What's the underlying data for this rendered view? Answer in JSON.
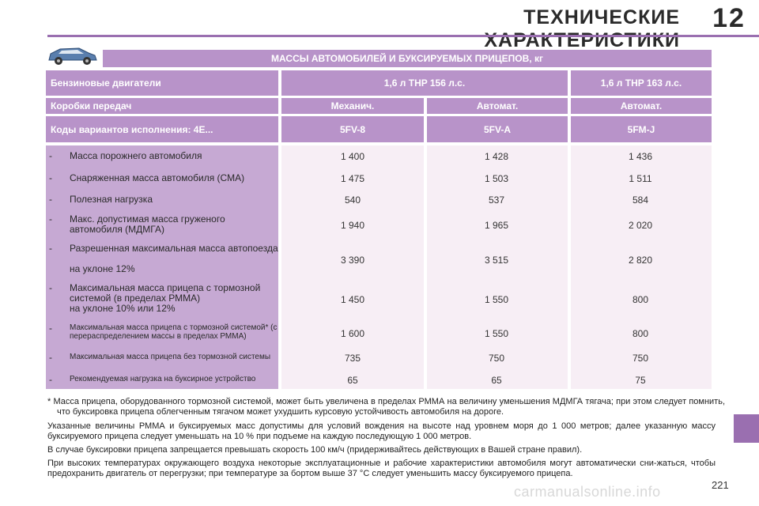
{
  "header": {
    "title": "ТЕХНИЧЕСКИЕ ХАРАКТЕРИСТИКИ",
    "chapter": "12"
  },
  "table": {
    "title": "МАССЫ АВТОМОБИЛЕЙ И БУКСИРУЕМЫХ ПРИЦЕПОВ, кг",
    "engines": {
      "label": "Бензиновые двигатели",
      "e1": "1,6 л THP 156 л.с.",
      "e2": "1,6 л THP 163 л.с."
    },
    "gearbox": {
      "label": "Коробки передач",
      "g1": "Механич.",
      "g2": "Автомат.",
      "g3": "Автомат."
    },
    "codes": {
      "label": "Коды вариантов исполнения: 4E...",
      "c1": "5FV-8",
      "c2": "5FV-A",
      "c3": "5FM-J"
    },
    "rows": [
      {
        "label": "Масса порожнего автомобиля",
        "v1": "1 400",
        "v2": "1 428",
        "v3": "1 436"
      },
      {
        "label": "Снаряженная масса автомобиля (СМА)",
        "v1": "1 475",
        "v2": "1 503",
        "v3": "1 511"
      },
      {
        "label": "Полезная нагрузка",
        "v1": "540",
        "v2": "537",
        "v3": "584"
      },
      {
        "label": "Макс. допустимая масса груженого автомобиля (МДМГА)",
        "v1": "1 940",
        "v2": "1 965",
        "v3": "2 020"
      },
      {
        "label": "Разрешенная максимальная масса автопоезда",
        "sub": "на уклоне 12%",
        "v1": "3 390",
        "v2": "3 515",
        "v3": "2 820"
      },
      {
        "label": "Максимальная масса прицепа с тормозной системой (в пределах РММА)",
        "sub": "на уклоне 10% или 12%",
        "v1": "1 450",
        "v2": "1 550",
        "v3": "800"
      },
      {
        "label": "Максимальная масса прицепа с тормозной системой* (с перераспределением массы в пределах РММА)",
        "v1": "1 600",
        "v2": "1 550",
        "v3": "800"
      },
      {
        "label": "Максимальная масса прицепа без тормозной системы",
        "v1": "735",
        "v2": "750",
        "v3": "750"
      },
      {
        "label": "Рекомендуемая нагрузка на буксирное устройство",
        "v1": "65",
        "v2": "65",
        "v3": "75"
      }
    ],
    "dash": "-"
  },
  "notes": {
    "footnote": "* Масса прицепа, оборудованного тормозной системой, может быть увеличена в пределах РММА на величину уменьшения МДМГА тягача; при этом следует помнить, что буксировка прицепа облегченным тягачом может ухудшить курсовую устойчивость автомобиля на дороге.",
    "p1": "Указанные величины РММА и буксируемых масс допустимы для условий вождения на высоте над уровнем моря до 1 000 метров; далее указанную массу буксируемого прицепа следует уменьшать на 10 % при подъеме на каждую последующую 1 000 метров.",
    "p2": "В случае буксировки прицепа запрещается превышать скорость 100 км/ч (придерживайтесь действующих в Вашей стране правил).",
    "p3": "При высоких температурах окружающего воздуха некоторые эксплуатационные и рабочие характеристики автомобиля могут автоматически сни-жаться, чтобы предохранить двигатель от перегрузки; при температуре за бортом выше 37 °C следует уменьшить массу буксируемого прицепа."
  },
  "page_number": "221",
  "watermark": "carmanualsonline.info",
  "icons": {
    "car": "car-icon"
  },
  "colors": {
    "accent": "#9a6fb0",
    "header_cell": "#b893c9",
    "label_col": "#c6a9d3",
    "data_col": "#f7eef5"
  }
}
